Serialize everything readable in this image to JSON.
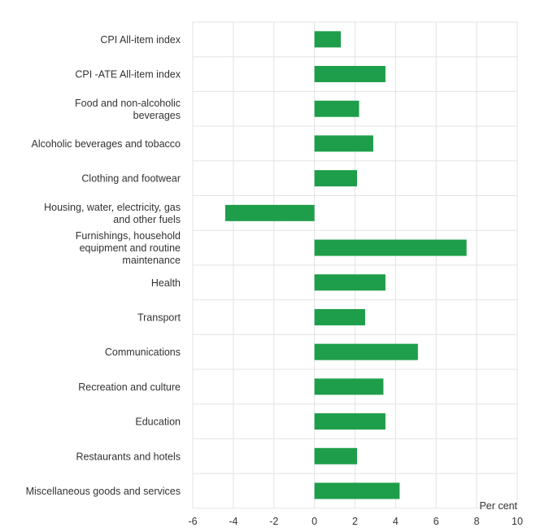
{
  "chart_data": {
    "type": "bar",
    "orientation": "horizontal",
    "categories": [
      [
        "CPI All-item index"
      ],
      [
        "CPI -ATE All-item index"
      ],
      [
        "Food and non-alcoholic",
        "beverages"
      ],
      [
        "Alcoholic beverages and tobacco"
      ],
      [
        "Clothing and footwear"
      ],
      [
        "Housing, water, electricity, gas",
        "and other fuels"
      ],
      [
        "Furnishings, household",
        "equipment and routine",
        "maintenance"
      ],
      [
        "Health"
      ],
      [
        "Transport"
      ],
      [
        "Communications"
      ],
      [
        "Recreation and culture"
      ],
      [
        "Education"
      ],
      [
        "Restaurants and hotels"
      ],
      [
        "Miscellaneous goods and services"
      ]
    ],
    "values": [
      1.3,
      3.5,
      2.2,
      2.9,
      2.1,
      -4.4,
      7.5,
      3.5,
      2.5,
      5.1,
      3.4,
      3.5,
      2.1,
      4.2
    ],
    "xlim": [
      -6,
      10
    ],
    "xticks": [
      "-6",
      "-4",
      "-2",
      "0",
      "2",
      "4",
      "6",
      "8",
      "10"
    ],
    "xlabel": "Per cent",
    "grid": true,
    "bar_color": "#1e9e4a",
    "grid_color": "#e3e3e3"
  }
}
